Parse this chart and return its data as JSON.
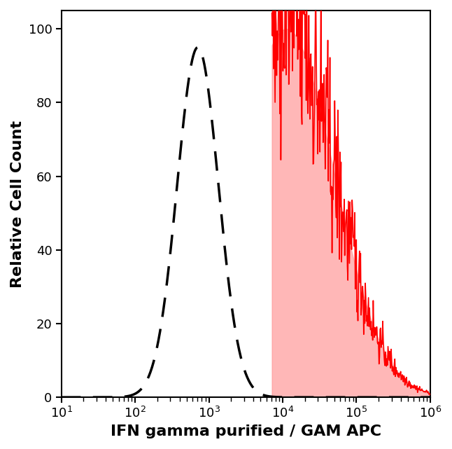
{
  "title": "",
  "xlabel": "IFN gamma purified / GAM APC",
  "ylabel": "Relative Cell Count",
  "xlim_log": [
    10,
    1000000
  ],
  "ylim": [
    0,
    105
  ],
  "yticks": [
    0,
    20,
    40,
    60,
    80,
    100
  ],
  "background_color": "#ffffff",
  "xlabel_fontsize": 16,
  "ylabel_fontsize": 16,
  "tick_fontsize": 13,
  "dashed_peak_log": 2.85,
  "dashed_peak_val": 95,
  "dashed_sigma_log": 0.28,
  "red_peak_log": 4.05,
  "red_peak_val": 100,
  "red_sigma_log": 0.65,
  "dashed_color": "#000000",
  "red_fill_color": "#ff9999",
  "red_line_color": "#ff0000",
  "noise_seed": 42,
  "n_points": 700
}
